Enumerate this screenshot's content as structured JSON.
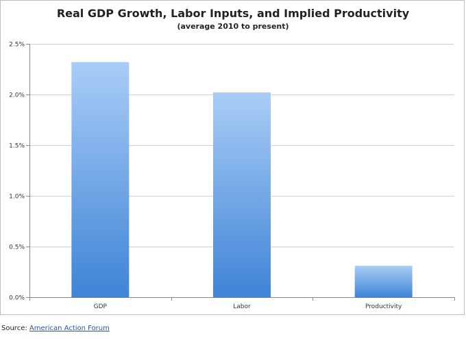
{
  "chart_data": {
    "type": "bar",
    "title": "Real GDP Growth, Labor Inputs, and Implied Productivity",
    "subtitle": "(average 2010 to present)",
    "categories": [
      "GDP",
      "Labor",
      "Productivity"
    ],
    "values": [
      2.32,
      2.02,
      0.31
    ],
    "ylim": [
      0,
      2.5
    ],
    "yticks": [
      "0.0%",
      "0.5%",
      "1.0%",
      "1.5%",
      "2.0%",
      "2.5%"
    ],
    "ytick_values": [
      0,
      0.5,
      1.0,
      1.5,
      2.0,
      2.5
    ],
    "grid": true,
    "legend": "none",
    "bar_color_top": "#a9cdf6",
    "bar_color_bottom": "#3f84d6"
  },
  "source": {
    "label": "Source: ",
    "link_text": "American Action Forum"
  }
}
